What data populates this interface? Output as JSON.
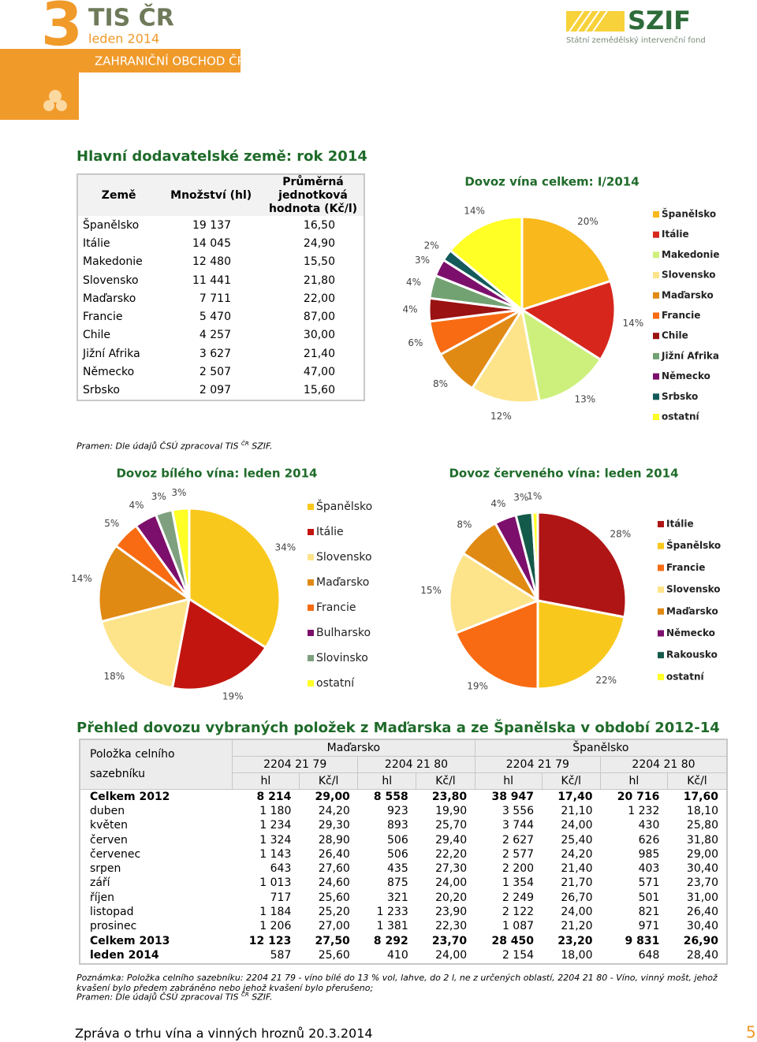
{
  "header": {
    "number": "3",
    "brand": "TIS ČR",
    "date": "leden 2014",
    "section": "ZAHRANIČNÍ OBCHOD ČR",
    "logo": "SZIF",
    "logo_sub": "Státní zemědělský intervenční fond"
  },
  "suppliers": {
    "title": "Hlavní dodavatelské země: rok 2014",
    "columns": [
      "Země",
      "Množství (hl)",
      "Průměrná jednotková hodnota (Kč/l)"
    ],
    "rows": [
      [
        "Španělsko",
        "19 137",
        "16,50"
      ],
      [
        "Itálie",
        "14 045",
        "24,90"
      ],
      [
        "Makedonie",
        "12 480",
        "15,50"
      ],
      [
        "Slovensko",
        "11 441",
        "21,80"
      ],
      [
        "Maďarsko",
        "7 711",
        "22,00"
      ],
      [
        "Francie",
        "5 470",
        "87,00"
      ],
      [
        "Chile",
        "4 257",
        "30,00"
      ],
      [
        "Jižní Afrika",
        "3 627",
        "21,40"
      ],
      [
        "Německo",
        "2 507",
        "47,00"
      ],
      [
        "Srbsko",
        "2 097",
        "15,60"
      ]
    ],
    "source": [
      "Pramen: Dle údajů ČSÚ zpracoval TIS ",
      "ČR",
      " SZIF."
    ]
  },
  "chart_data": [
    {
      "type": "pie",
      "title": "Dovoz vína celkem: I/2014",
      "categories": [
        "Španělsko",
        "Itálie",
        "Makedonie",
        "Slovensko",
        "Maďarsko",
        "Francie",
        "Chile",
        "Jižní Afrika",
        "Německo",
        "Srbsko",
        "ostatní"
      ],
      "values": [
        20,
        14,
        13,
        12,
        8,
        6,
        4,
        4,
        3,
        2,
        14
      ],
      "value_labels": [
        "20%",
        "14%",
        "13%",
        "12%",
        "8%",
        "6%",
        "4%",
        "4%",
        "3%",
        "2%",
        "14%"
      ],
      "colors": [
        "#f9b81c",
        "#d7261c",
        "#cdf07c",
        "#fde48a",
        "#e08a14",
        "#f86b12",
        "#9a1212",
        "#72a272",
        "#7d0f6c",
        "#145a5a",
        "#ffff26"
      ]
    },
    {
      "type": "pie",
      "title": "Dovoz bílého vína: leden 2014",
      "categories": [
        "Španělsko",
        "Itálie",
        "Slovensko",
        "Maďarsko",
        "Francie",
        "Bulharsko",
        "Slovinsko",
        "ostatní"
      ],
      "values": [
        34,
        19,
        18,
        14,
        5,
        4,
        3,
        3
      ],
      "value_labels": [
        "34%",
        "19%",
        "18%",
        "14%",
        "5%",
        "4%",
        "3%",
        "3%"
      ],
      "colors": [
        "#f9c81c",
        "#c2150f",
        "#fde48a",
        "#e08a14",
        "#f86b12",
        "#7d0f6c",
        "#7ea07e",
        "#ffff26"
      ]
    },
    {
      "type": "pie",
      "title": "Dovoz červeného vína: leden 2014",
      "categories": [
        "Itálie",
        "Španělsko",
        "Francie",
        "Slovensko",
        "Maďarsko",
        "Německo",
        "Rakousko",
        "ostatní"
      ],
      "values": [
        28,
        22,
        19,
        15,
        8,
        4,
        3,
        1
      ],
      "value_labels": [
        "28%",
        "22%",
        "19%",
        "15%",
        "8%",
        "4%",
        "3%",
        "1%"
      ],
      "colors": [
        "#b01515",
        "#f9c81c",
        "#f86b12",
        "#fde48a",
        "#e08a14",
        "#7d0f6c",
        "#145a4a",
        "#ffff26"
      ]
    }
  ],
  "overview": {
    "title": "Přehled dovozu vybraných položek z Maďarska a ze Španělska v období 2012-14",
    "item_header": "Položka celního sazebníku",
    "countries": [
      "Maďarsko",
      "Španělsko"
    ],
    "codes": [
      "2204 21 79",
      "2204 21 80",
      "2204 21 79",
      "2204 21 80"
    ],
    "units": [
      "hl",
      "Kč/l",
      "hl",
      "Kč/l",
      "hl",
      "Kč/l",
      "hl",
      "Kč/l"
    ],
    "rows": [
      [
        "Celkem 2012",
        "8 214",
        "29,00",
        "8 558",
        "23,80",
        "38 947",
        "17,40",
        "20 716",
        "17,60"
      ],
      [
        "duben",
        "1 180",
        "24,20",
        "923",
        "19,90",
        "3 556",
        "21,10",
        "1 232",
        "18,10"
      ],
      [
        "květen",
        "1 234",
        "29,30",
        "893",
        "25,70",
        "3 744",
        "24,00",
        "430",
        "25,80"
      ],
      [
        "červen",
        "1 324",
        "28,90",
        "506",
        "29,40",
        "2 627",
        "25,40",
        "626",
        "31,80"
      ],
      [
        "červenec",
        "1 143",
        "26,40",
        "506",
        "22,20",
        "2 577",
        "24,20",
        "985",
        "29,00"
      ],
      [
        "srpen",
        "643",
        "27,60",
        "435",
        "27,30",
        "2 200",
        "21,40",
        "403",
        "30,40"
      ],
      [
        "září",
        "1 013",
        "24,60",
        "875",
        "24,00",
        "1 354",
        "21,70",
        "571",
        "23,70"
      ],
      [
        "říjen",
        "717",
        "25,60",
        "321",
        "20,20",
        "2 249",
        "26,70",
        "501",
        "31,00"
      ],
      [
        "listopad",
        "1 184",
        "25,20",
        "1 233",
        "23,90",
        "2 122",
        "24,00",
        "821",
        "26,40"
      ],
      [
        "prosinec",
        "1 206",
        "27,00",
        "1 381",
        "22,30",
        "1 087",
        "21,20",
        "971",
        "30,40"
      ],
      [
        "Celkem 2013",
        "12 123",
        "27,50",
        "8 292",
        "23,70",
        "28 450",
        "23,20",
        "9 831",
        "26,90"
      ],
      [
        "leden 2014",
        "587",
        "25,60",
        "410",
        "24,00",
        "2 154",
        "18,00",
        "648",
        "28,40"
      ]
    ],
    "note": "Poznámka: Položka celního sazebníku: 2204 21 79 - víno bílé do 13 % vol, lahve, do 2 l, ne z určených oblastí, 2204 21 80 - Víno, vinný mošt, jehož kvašení bylo předem zabráněno nebo jehož kvašení bylo přerušeno;",
    "source": [
      "Pramen: Dle údajů ČSÚ zpracoval TIS ",
      "ČR",
      " SZIF."
    ]
  },
  "footer": {
    "text": "Zpráva o trhu vína a vinných hroznů 20.3.2014",
    "page": "5"
  }
}
